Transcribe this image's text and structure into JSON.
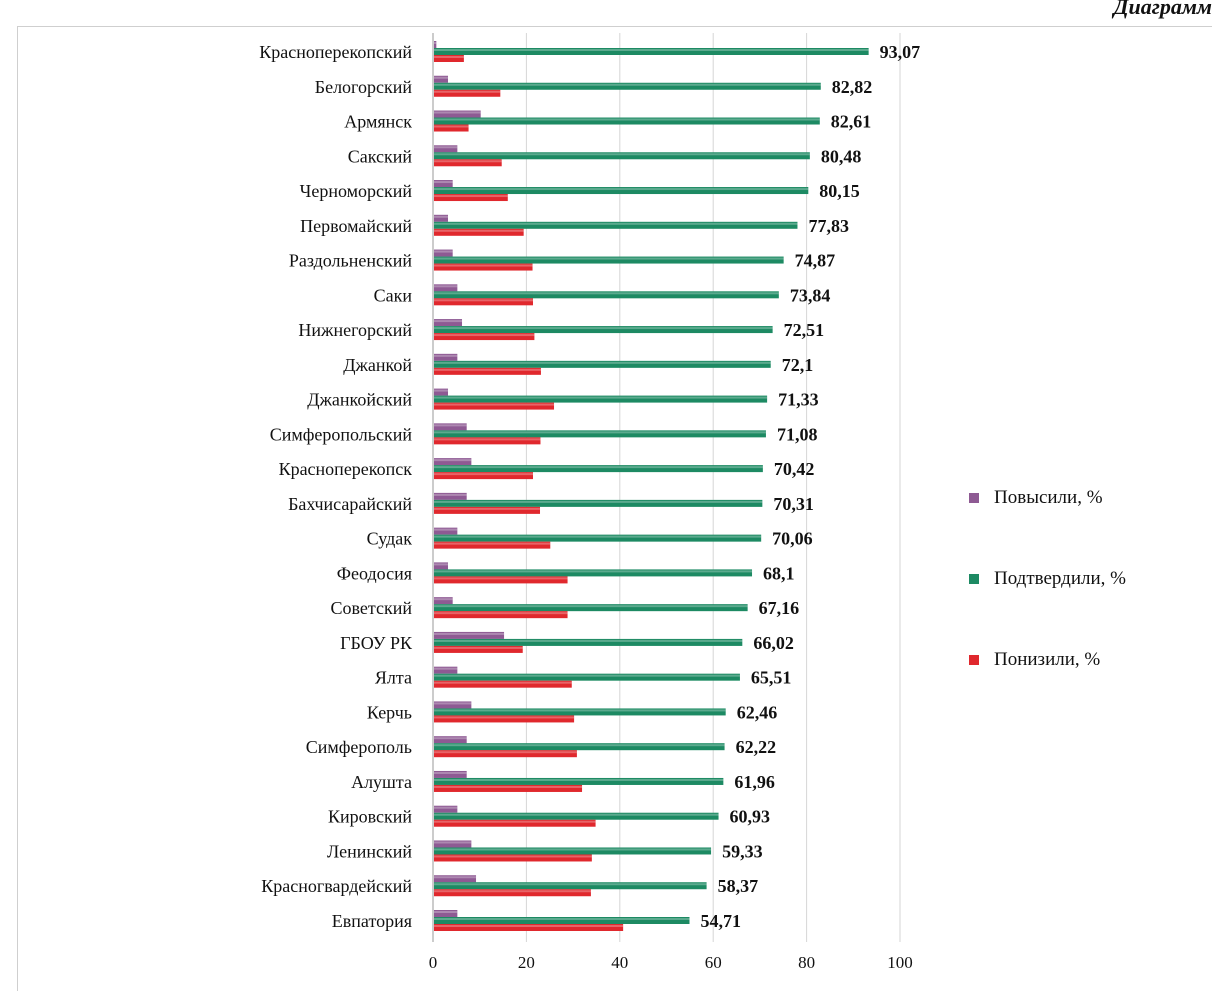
{
  "heading": "Диаграмм",
  "chart_data": {
    "type": "bar",
    "orientation": "horizontal",
    "categories": [
      "Красноперекопский",
      "Белогорский",
      "Армянск",
      "Сакский",
      "Черноморский",
      "Первомайский",
      "Раздольненский",
      "Саки",
      "Нижнегорский",
      "Джанкой",
      "Джанкойский",
      "Симферопольский",
      "Красноперекопск",
      "Бахчисарайский",
      "Судак",
      "Феодосия",
      "Советский",
      "ГБОУ РК",
      "Ялта",
      "Керчь",
      "Симферополь",
      "Алушта",
      "Кировский",
      "Ленинский",
      "Красногвардейский",
      "Евпатория"
    ],
    "series": [
      {
        "name": "Повысили, %",
        "color": "#8e5a93",
        "values": [
          0.5,
          3,
          10,
          5,
          4,
          3,
          4,
          5,
          6,
          5,
          3,
          7,
          8,
          7,
          5,
          3,
          4,
          15,
          5,
          8,
          7,
          7,
          5,
          8,
          9,
          5
        ]
      },
      {
        "name": "Подтвердили,  %",
        "color": "#1d8a63",
        "values": [
          93.07,
          82.82,
          82.61,
          80.48,
          80.15,
          77.83,
          74.87,
          73.84,
          72.51,
          72.1,
          71.33,
          71.08,
          70.42,
          70.31,
          70.06,
          68.1,
          67.16,
          66.02,
          65.51,
          62.46,
          62.22,
          61.96,
          60.93,
          59.33,
          58.37,
          54.71
        ]
      },
      {
        "name": "Понизили, %",
        "color": "#e0282d",
        "values": [
          6.4,
          14.2,
          7.4,
          14.5,
          15.8,
          19.2,
          21.1,
          21.2,
          21.5,
          22.9,
          25.7,
          22.8,
          21.2,
          22.7,
          24.9,
          28.6,
          28.6,
          19.0,
          29.5,
          30.0,
          30.6,
          31.7,
          34.6,
          33.8,
          33.6,
          40.5
        ]
      }
    ],
    "value_labels": [
      "93,07",
      "82,82",
      "82,61",
      "80,48",
      "80,15",
      "77,83",
      "74,87",
      "73,84",
      "72,51",
      "72,1",
      "71,33",
      "71,08",
      "70,42",
      "70,31",
      "70,06",
      "68,1",
      "67,16",
      "66,02",
      "65,51",
      "62,46",
      "62,22",
      "61,96",
      "60,93",
      "59,33",
      "58,37",
      "54,71"
    ],
    "xlim": [
      0,
      100
    ],
    "x_ticks": [
      0,
      20,
      40,
      60,
      80,
      100
    ],
    "grid": true,
    "legend_position": "right"
  }
}
